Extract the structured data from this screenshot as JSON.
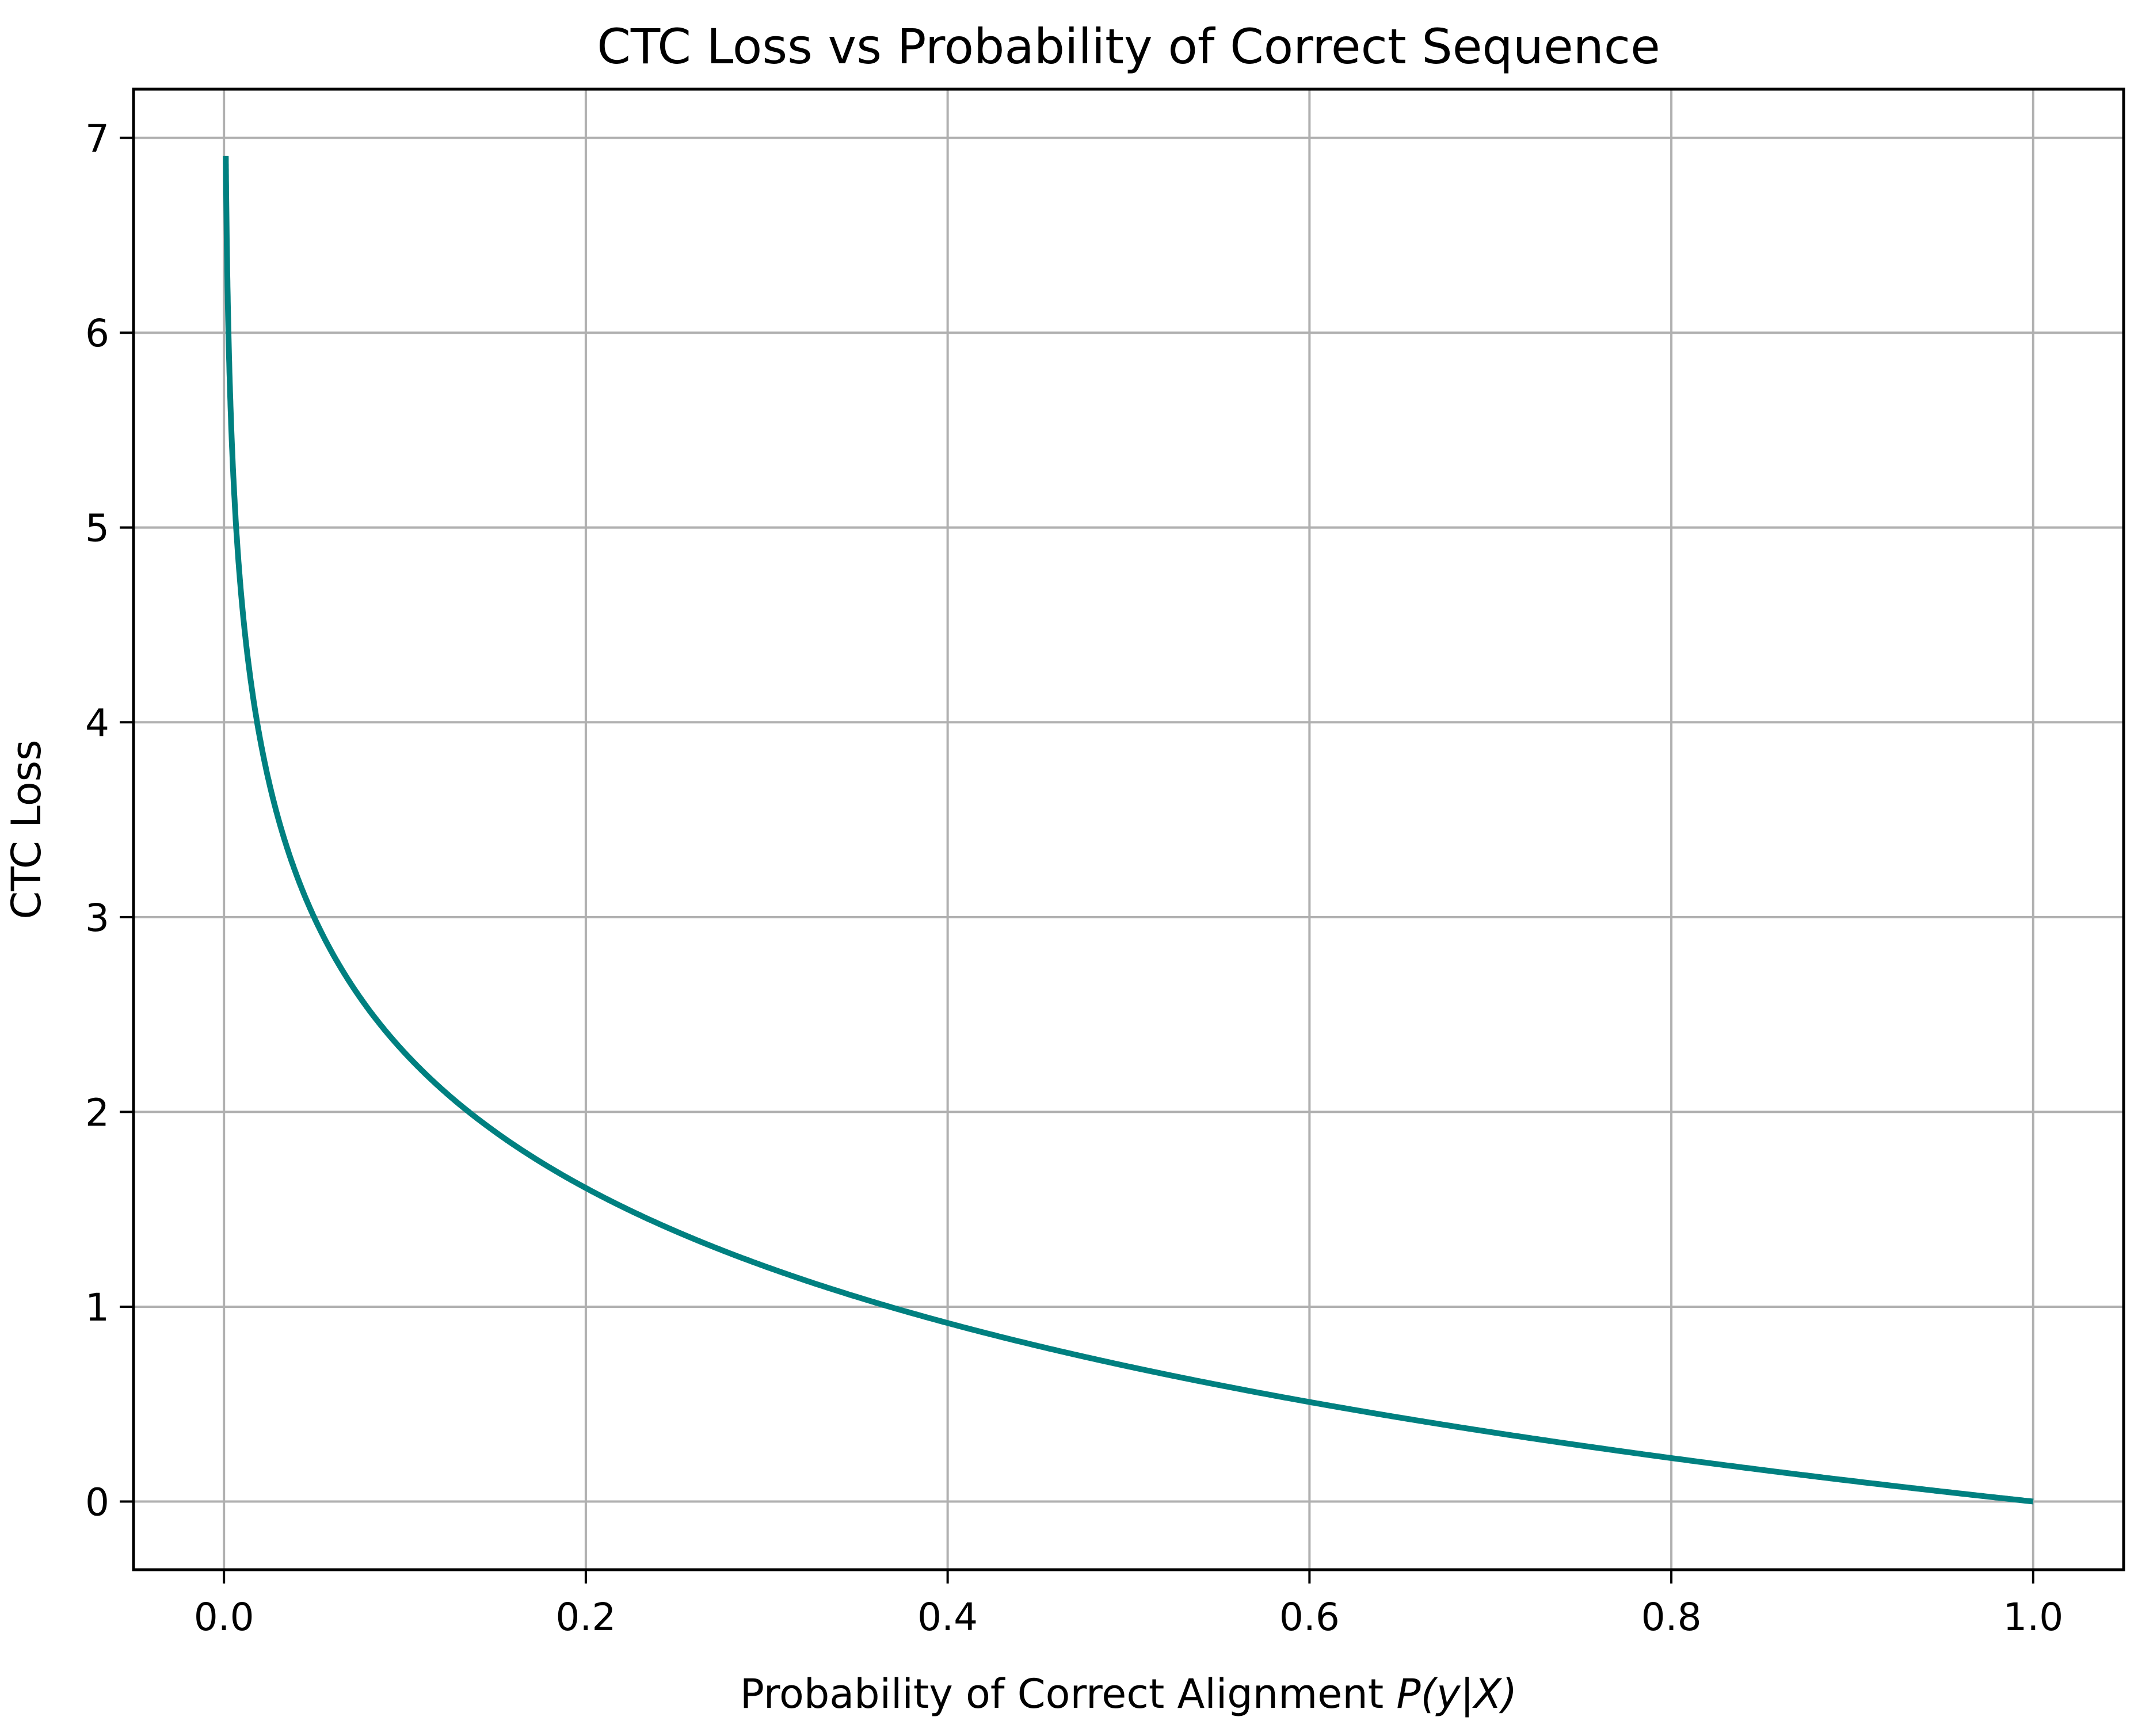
{
  "chart_data": {
    "type": "line",
    "title": "CTC Loss vs Probability of Correct Sequence",
    "xlabel_prefix": "Probability of Correct Alignment ",
    "xlabel_math": "P(y|X)",
    "ylabel": "CTC Loss",
    "xlim": [
      -0.05,
      1.05
    ],
    "ylim": [
      -0.35,
      7.25
    ],
    "xticks": [
      0.0,
      0.2,
      0.4,
      0.6,
      0.8,
      1.0
    ],
    "xtick_labels": [
      "0.0",
      "0.2",
      "0.4",
      "0.6",
      "0.8",
      "1.0"
    ],
    "yticks": [
      0,
      1,
      2,
      3,
      4,
      5,
      6,
      7
    ],
    "ytick_labels": [
      "0",
      "1",
      "2",
      "3",
      "4",
      "5",
      "6",
      "7"
    ],
    "grid": true,
    "series": [
      {
        "function": "-ln(x)",
        "x_range": [
          0.001,
          1.0
        ],
        "color": "#008080",
        "x": [
          0.001,
          0.002,
          0.005,
          0.01,
          0.02,
          0.05,
          0.1,
          0.2,
          0.4,
          0.6,
          0.8,
          1.0
        ],
        "y": [
          6.91,
          6.21,
          5.3,
          4.61,
          3.91,
          3.0,
          2.3,
          1.61,
          0.92,
          0.51,
          0.22,
          0.0
        ]
      }
    ]
  }
}
